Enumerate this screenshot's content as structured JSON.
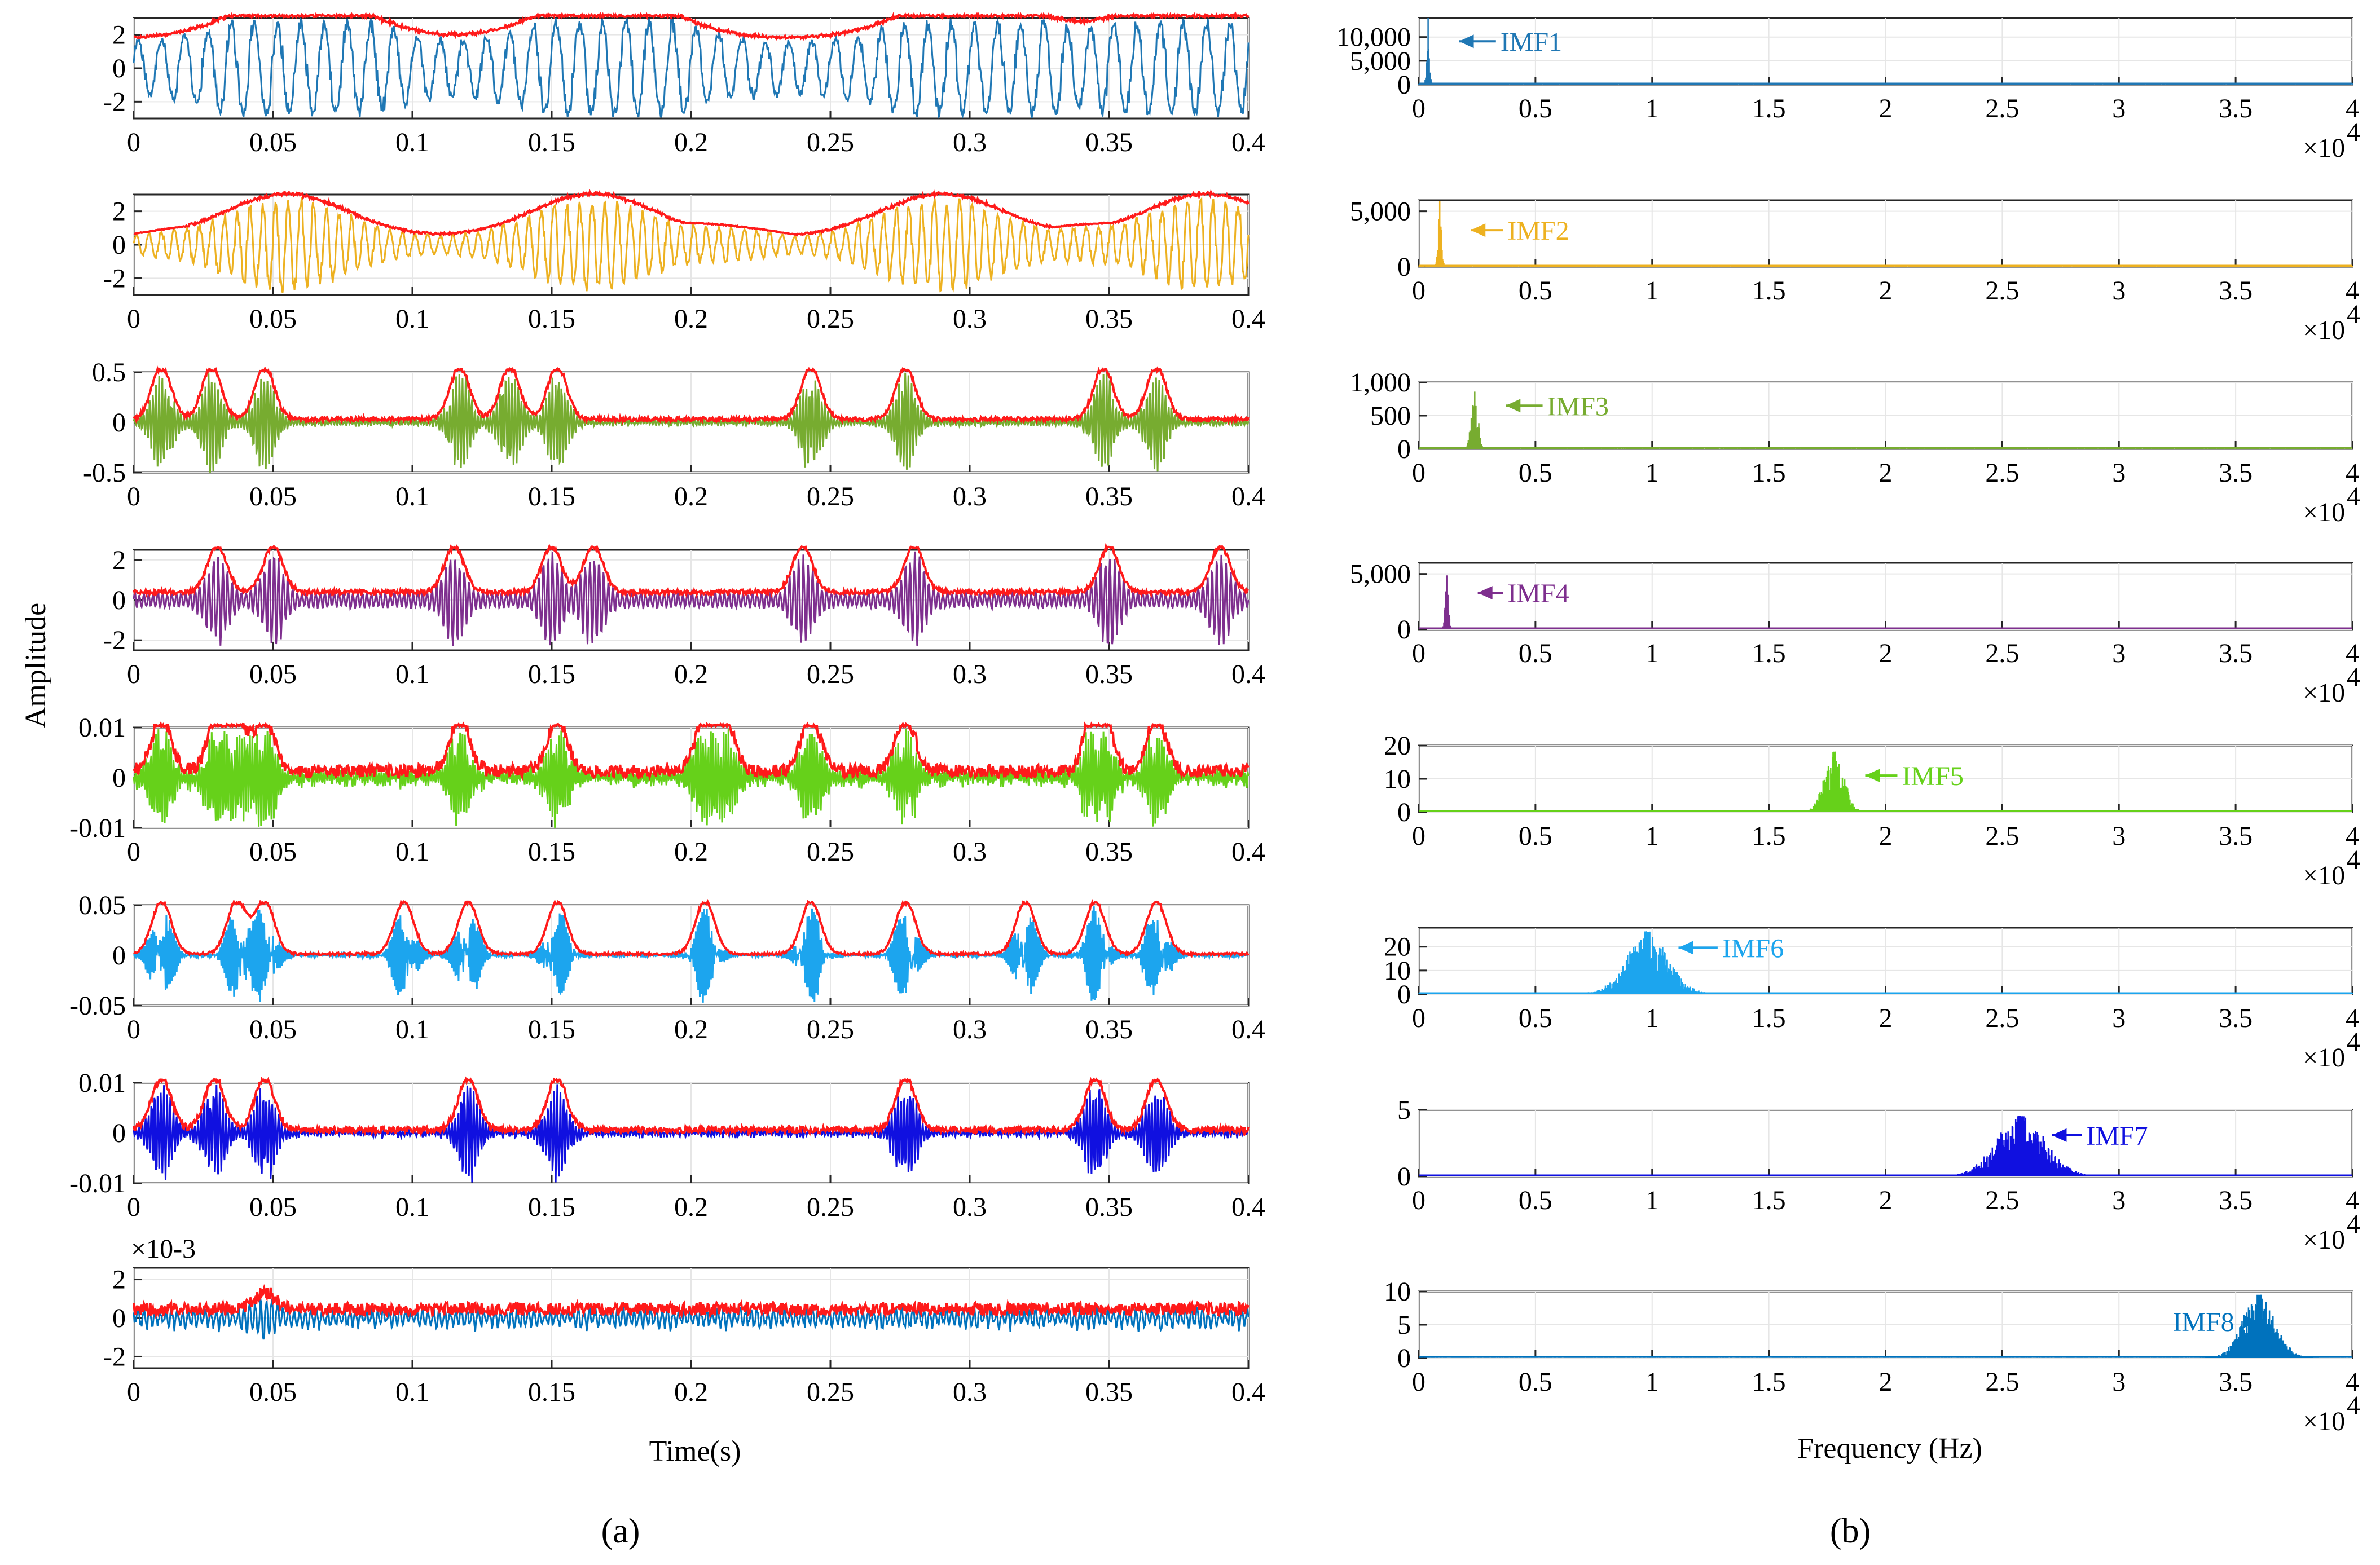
{
  "chart_data": [
    {
      "panel": "a",
      "panel_label": "(a)",
      "type": "line",
      "xlabel": "Time(s)",
      "ylabel": "Amplitude",
      "xlim": [
        0,
        0.4
      ],
      "x_ticks": [
        "0",
        "0.05",
        "0.1",
        "0.15",
        "0.2",
        "0.25",
        "0.3",
        "0.35",
        "0.4"
      ],
      "envelope_color": "#ff1a1a",
      "series": [
        {
          "name": "IMF1",
          "color": "#1f77b4",
          "ylim": [
            -3,
            3
          ],
          "y_ticks": [
            "2",
            "0",
            "-2"
          ],
          "y_tick_values": [
            2,
            0,
            -2
          ],
          "exponent": "",
          "amplitude": 2.6,
          "carrier_cycles": 120,
          "noise": 0.05,
          "bursts": [
            0.06,
            0.17,
            0.3,
            0.38
          ],
          "baseline": 1.8
        },
        {
          "name": "IMF2",
          "color": "#edb120",
          "ylim": [
            -3,
            3
          ],
          "y_ticks": [
            "2",
            "0",
            "-2"
          ],
          "y_tick_values": [
            2,
            0,
            -2
          ],
          "exponent": "",
          "amplitude": 2.5,
          "carrier_cycles": 220,
          "noise": 0.05,
          "bursts": [
            0.055,
            0.165,
            0.29,
            0.385
          ],
          "baseline": 0.4
        },
        {
          "name": "IMF3",
          "color": "#77ac30",
          "ylim": [
            -0.5,
            0.5
          ],
          "y_ticks": [
            "0.5",
            "0",
            "-0.5"
          ],
          "y_tick_values": [
            0.5,
            0,
            -0.5
          ],
          "exponent": "",
          "amplitude": 0.5,
          "carrier_cycles": 900,
          "noise": 0.08,
          "bursts": [
            0.01,
            0.028,
            0.047,
            0.117,
            0.135,
            0.152,
            0.243,
            0.277,
            0.348,
            0.367
          ],
          "baseline": 0.06
        },
        {
          "name": "IMF4",
          "color": "#7e2f8e",
          "ylim": [
            -2.5,
            2.5
          ],
          "y_ticks": [
            "2",
            "0",
            "-2"
          ],
          "y_tick_values": [
            2,
            0,
            -2
          ],
          "exponent": "",
          "amplitude": 2.2,
          "carrier_cycles": 600,
          "noise": 0.1,
          "bursts": [
            0.03,
            0.05,
            0.115,
            0.15,
            0.165,
            0.24,
            0.28,
            0.35,
            0.39
          ],
          "baseline": 0.35
        },
        {
          "name": "IMF5",
          "color": "#66d11a",
          "ylim": [
            -0.01,
            0.01
          ],
          "y_ticks": [
            "0.01",
            "0",
            "-0.01"
          ],
          "y_tick_values": [
            0.01,
            0,
            -0.01
          ],
          "exponent": "",
          "amplitude": 0.01,
          "carrier_cycles": 2400,
          "noise": 0.25,
          "bursts": [
            0.01,
            0.03,
            0.037,
            0.047,
            0.117,
            0.152,
            0.205,
            0.212,
            0.243,
            0.277,
            0.345,
            0.347,
            0.367
          ],
          "baseline": 0.003
        },
        {
          "name": "IMF6",
          "color": "#1ca5ee",
          "ylim": [
            -0.05,
            0.05
          ],
          "y_ticks": [
            "0.05",
            "0",
            "-0.05"
          ],
          "y_tick_values": [
            0.05,
            0,
            -0.05
          ],
          "exponent": "",
          "amplitude": 0.05,
          "carrier_cycles": 1800,
          "noise": 0.05,
          "bursts": [
            0.01,
            0.037,
            0.047,
            0.097,
            0.12,
            0.152,
            0.205,
            0.243,
            0.277,
            0.32,
            0.345,
            0.367
          ],
          "baseline": 0.004
        },
        {
          "name": "IMF7",
          "color": "#1010e0",
          "ylim": [
            -0.01,
            0.01
          ],
          "y_ticks": [
            "0.01",
            "0",
            "-0.01"
          ],
          "y_tick_values": [
            0.01,
            0,
            -0.01
          ],
          "exponent": "",
          "amplitude": 0.01,
          "carrier_cycles": 2600,
          "noise": 0.12,
          "bursts": [
            0.01,
            0.029,
            0.047,
            0.12,
            0.152,
            0.277,
            0.345,
            0.367
          ],
          "baseline": 0.0015
        },
        {
          "name": "IMF8",
          "color": "#0072bd",
          "ylim": [
            -2.6,
            2.6
          ],
          "y_ticks": [
            "2",
            "0",
            "-2"
          ],
          "y_tick_values": [
            2,
            0,
            -2
          ],
          "exponent": "×10-3",
          "amplitude": 0.9,
          "carrier_cycles": 3000,
          "noise": 0.7,
          "bursts": [
            0.047
          ],
          "baseline": 0.4
        }
      ]
    },
    {
      "panel": "b",
      "panel_label": "(b)",
      "type": "line",
      "xlabel": "Frequency (Hz)",
      "xlim": [
        0,
        4
      ],
      "x_multiplier": "×10",
      "x_multiplier_exp": "4",
      "x_ticks": [
        "0",
        "0.5",
        "1",
        "1.5",
        "2",
        "2.5",
        "3",
        "3.5",
        "4"
      ],
      "series": [
        {
          "name": "IMF1",
          "color": "#1f77b4",
          "label": "IMF1",
          "ylim": [
            0,
            14000
          ],
          "y_ticks": [
            "10,000",
            "5,000",
            "0"
          ],
          "y_tick_values": [
            10000,
            5000,
            0
          ],
          "peak_x": 0.04,
          "peak_y": 14000,
          "width": 0.015,
          "tail": 800,
          "label_side": "right",
          "label_x": 0.35,
          "label_y": 0.65
        },
        {
          "name": "IMF2",
          "color": "#edb120",
          "label": "IMF2",
          "ylim": [
            0,
            6000
          ],
          "y_ticks": [
            "5,000",
            "0"
          ],
          "y_tick_values": [
            5000,
            0
          ],
          "peak_x": 0.09,
          "peak_y": 5800,
          "width": 0.02,
          "tail": 300,
          "label_side": "right",
          "label_x": 0.38,
          "label_y": 0.55
        },
        {
          "name": "IMF3",
          "color": "#77ac30",
          "label": "IMF3",
          "ylim": [
            0,
            1000
          ],
          "y_ticks": [
            "1,000",
            "500",
            "0"
          ],
          "y_tick_values": [
            1000,
            500,
            0
          ],
          "peak_x": 0.24,
          "peak_y": 850,
          "width": 0.04,
          "tail": 30,
          "label_side": "right",
          "label_x": 0.55,
          "label_y": 0.65
        },
        {
          "name": "IMF4",
          "color": "#7e2f8e",
          "label": "IMF4",
          "ylim": [
            0,
            6000
          ],
          "y_ticks": [
            "5,000",
            "0"
          ],
          "y_tick_values": [
            5000,
            0
          ],
          "peak_x": 0.12,
          "peak_y": 4800,
          "width": 0.02,
          "tail": 200,
          "label_side": "right",
          "label_x": 0.38,
          "label_y": 0.55
        },
        {
          "name": "IMF5",
          "color": "#66d11a",
          "label": "IMF5",
          "ylim": [
            0,
            20
          ],
          "y_ticks": [
            "20",
            "10",
            "0"
          ],
          "y_tick_values": [
            20,
            10,
            0
          ],
          "peak_x": 1.78,
          "peak_y": 18,
          "width": 0.12,
          "tail": 0.4,
          "label_side": "right",
          "label_x": 2.07,
          "label_y": 0.55
        },
        {
          "name": "IMF6",
          "color": "#1ca5ee",
          "label": "IMF6",
          "ylim": [
            0,
            28
          ],
          "y_ticks": [
            "20",
            "10",
            "0"
          ],
          "y_tick_values": [
            20,
            10,
            0
          ],
          "peak_x": 0.98,
          "peak_y": 26,
          "width": 0.25,
          "tail": 1.0,
          "label_side": "right",
          "label_x": 1.3,
          "label_y": 0.7
        },
        {
          "name": "IMF7",
          "color": "#1010e0",
          "label": "IMF7",
          "ylim": [
            0,
            5
          ],
          "y_ticks": [
            "5",
            "0"
          ],
          "y_tick_values": [
            5,
            0
          ],
          "peak_x": 2.58,
          "peak_y": 4.5,
          "width": 0.3,
          "tail": 0.08,
          "label_side": "right",
          "label_x": 2.86,
          "label_y": 0.62
        },
        {
          "name": "IMF8",
          "color": "#0072bd",
          "label": "IMF8",
          "ylim": [
            0,
            10
          ],
          "y_ticks": [
            "10",
            "5",
            "0"
          ],
          "y_tick_values": [
            10,
            5,
            0
          ],
          "peak_x": 3.6,
          "peak_y": 9.5,
          "width": 0.2,
          "tail": 0.05,
          "label_side": "left",
          "label_x": 3.23,
          "label_y": 0.55
        }
      ]
    }
  ]
}
